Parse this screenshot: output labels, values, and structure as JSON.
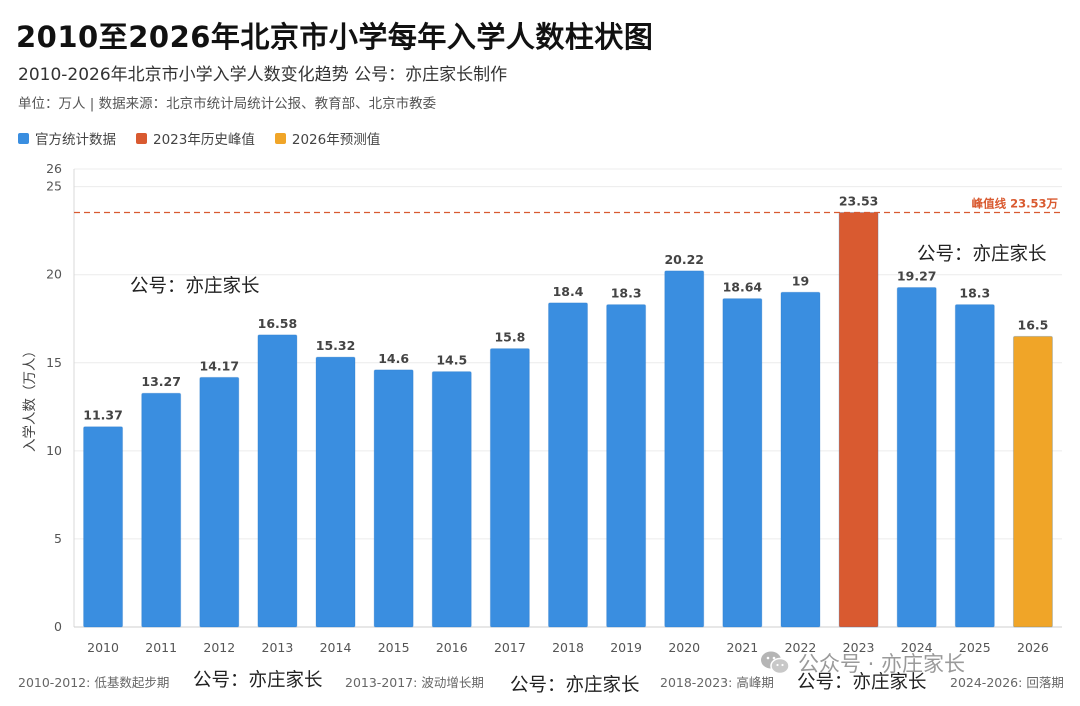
{
  "title": "2010至2026年北京市小学每年入学人数柱状图",
  "subtitle": "2010-2026年北京市小学入学人数变化趋势 公号：亦庄家长制作",
  "source": "单位：万人 | 数据来源：北京市统计局统计公报、教育部、北京市教委",
  "legend": [
    {
      "label": "官方统计数据",
      "color": "#3a8ee0"
    },
    {
      "label": "2023年历史峰值",
      "color": "#d95a30"
    },
    {
      "label": "2026年预测值",
      "color": "#f0a528"
    }
  ],
  "chart_data": {
    "type": "bar",
    "categories": [
      "2010",
      "2011",
      "2012",
      "2013",
      "2014",
      "2015",
      "2016",
      "2017",
      "2018",
      "2019",
      "2020",
      "2021",
      "2022",
      "2023",
      "2024",
      "2025",
      "2026"
    ],
    "values": [
      11.37,
      13.27,
      14.17,
      16.58,
      15.32,
      14.6,
      14.5,
      15.8,
      18.4,
      18.3,
      20.22,
      18.64,
      19,
      23.53,
      19.27,
      18.3,
      16.5
    ],
    "value_labels": [
      "11.37",
      "13.27",
      "14.17",
      "16.58",
      "15.32",
      "14.6",
      "14.5",
      "15.8",
      "18.4",
      "18.3",
      "20.22",
      "18.64",
      "19",
      "23.53",
      "19.27",
      "18.3",
      "16.5"
    ],
    "bar_colors": [
      "#3a8ee0",
      "#3a8ee0",
      "#3a8ee0",
      "#3a8ee0",
      "#3a8ee0",
      "#3a8ee0",
      "#3a8ee0",
      "#3a8ee0",
      "#3a8ee0",
      "#3a8ee0",
      "#3a8ee0",
      "#3a8ee0",
      "#3a8ee0",
      "#d95a30",
      "#3a8ee0",
      "#3a8ee0",
      "#f0a528"
    ],
    "ylabel": "入学人数（万人）",
    "ylim": [
      0,
      26
    ],
    "yticks": [
      0,
      5,
      10,
      15,
      20,
      25,
      26
    ],
    "grid": true,
    "reference_line": {
      "value": 23.53,
      "label": "峰值线 23.53万",
      "color": "#d95a30"
    },
    "legend_position": "top-left"
  },
  "footer_notes": [
    "2010-2012: 低基数起步期",
    "2013-2017: 波动增长期",
    "2018-2023: 高峰期",
    "2024-2026: 回落期"
  ],
  "watermarks": [
    "公号：亦庄家长",
    "公号：亦庄家长",
    "公号：亦庄家长",
    "公号：亦庄家长",
    "公号：亦庄家长"
  ],
  "wechat_watermark": "公众号 · 亦庄家长"
}
